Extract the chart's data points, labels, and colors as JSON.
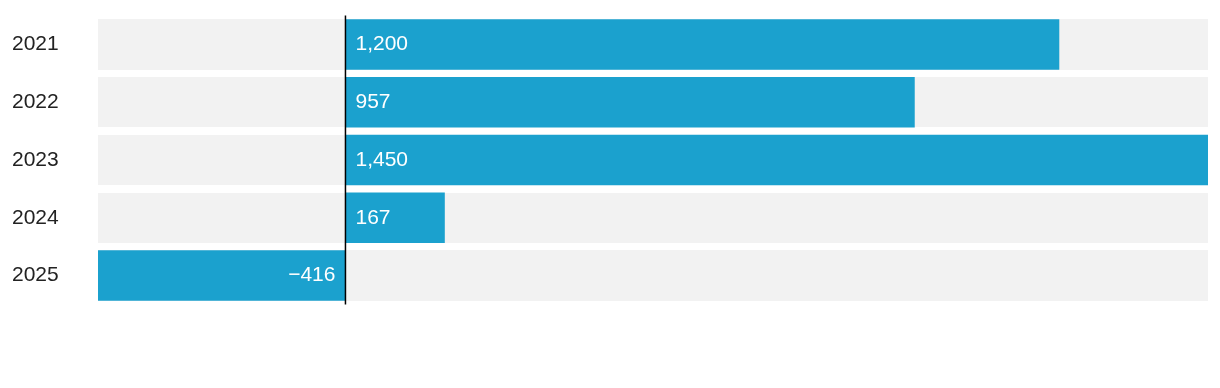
{
  "chart_data": {
    "type": "bar",
    "orientation": "horizontal",
    "categories": [
      "2021",
      "2022",
      "2023",
      "2024",
      "2025"
    ],
    "values": [
      1200,
      957,
      1450,
      167,
      -416
    ],
    "value_labels": [
      "1,200",
      "957",
      "1,450",
      "167",
      "−416"
    ],
    "color": "#1ba1ce",
    "xlim": [
      -416,
      1450
    ],
    "tick_labels": "y",
    "legend": false
  }
}
